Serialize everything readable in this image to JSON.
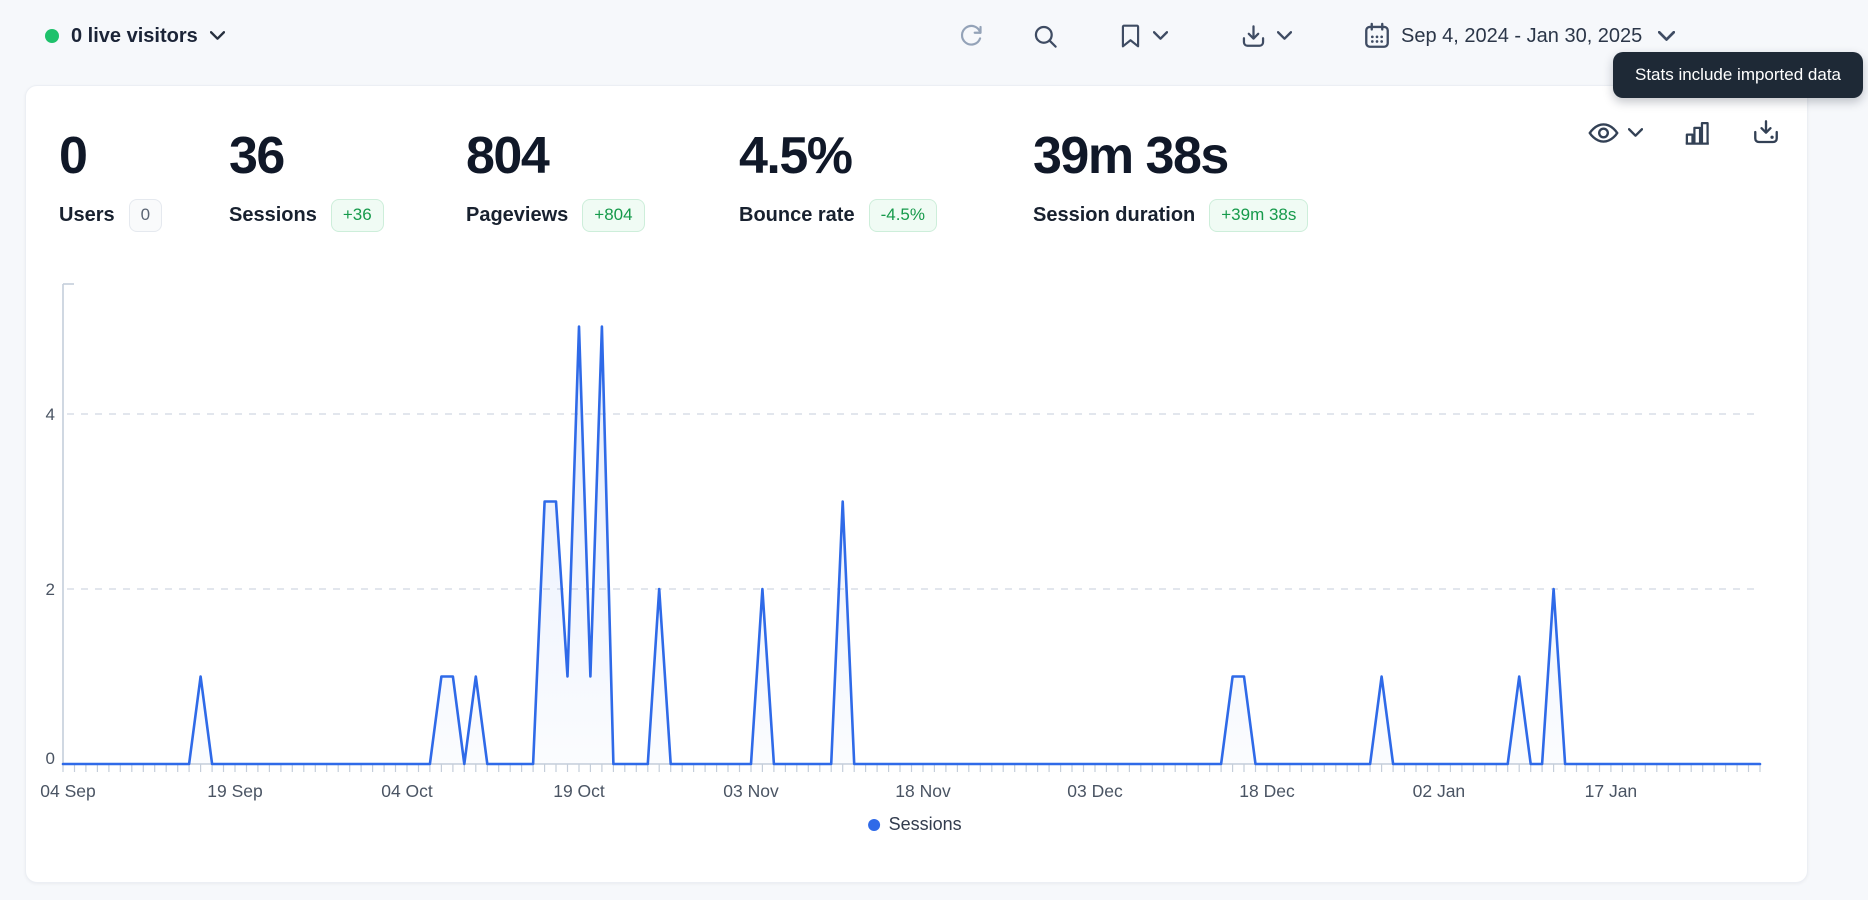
{
  "topbar": {
    "live_visitors": "0 live visitors",
    "date_range": "Sep 4, 2024 - Jan 30, 2025",
    "icons": [
      "refresh-icon",
      "search-icon",
      "bookmark-icon",
      "export-icon",
      "calendar-icon"
    ]
  },
  "tooltip": {
    "text": "Stats include imported data"
  },
  "metrics": [
    {
      "value": "0",
      "label": "Users",
      "badge": "0",
      "badge_type": "neutral"
    },
    {
      "value": "36",
      "label": "Sessions",
      "badge": "+36",
      "badge_type": "positive"
    },
    {
      "value": "804",
      "label": "Pageviews",
      "badge": "+804",
      "badge_type": "positive"
    },
    {
      "value": "4.5%",
      "label": "Bounce rate",
      "badge": "-4.5%",
      "badge_type": "positive"
    },
    {
      "value": "39m 38s",
      "label": "Session duration",
      "badge": "+39m 38s",
      "badge_type": "positive"
    }
  ],
  "card_actions": [
    "visibility-eye",
    "bar-chart-view",
    "import-data"
  ],
  "chart_data": {
    "type": "area",
    "series_name": "Sessions",
    "title": "",
    "xlabel": "",
    "ylabel": "",
    "x_start_date": "Sep 4, 2024",
    "x_end_date": "Jan 30, 2025",
    "days_total": 148,
    "x_tick_labels": [
      "04 Sep",
      "19 Sep",
      "04 Oct",
      "19 Oct",
      "03 Nov",
      "18 Nov",
      "03 Dec",
      "18 Dec",
      "02 Jan",
      "17 Jan"
    ],
    "x_tick_days": [
      0,
      15,
      30,
      45,
      60,
      75,
      90,
      105,
      120,
      135
    ],
    "y_ticks": [
      0,
      2,
      4
    ],
    "ylim": [
      0,
      5.5
    ],
    "grid": "dashed-horizontal",
    "legend_position": "bottom-center",
    "line_color": "#2f6ae8",
    "points": [
      {
        "day": 12,
        "date": "Sep 16",
        "value": 1
      },
      {
        "day": 33,
        "date": "Oct 7",
        "value": 1
      },
      {
        "day": 34,
        "date": "Oct 8",
        "value": 1
      },
      {
        "day": 36,
        "date": "Oct 10",
        "value": 1
      },
      {
        "day": 42,
        "date": "Oct 16",
        "value": 3
      },
      {
        "day": 43,
        "date": "Oct 17",
        "value": 3
      },
      {
        "day": 44,
        "date": "Oct 18",
        "value": 1
      },
      {
        "day": 45,
        "date": "Oct 19",
        "value": 5
      },
      {
        "day": 46,
        "date": "Oct 20",
        "value": 1
      },
      {
        "day": 47,
        "date": "Oct 21",
        "value": 5
      },
      {
        "day": 52,
        "date": "Oct 26",
        "value": 2
      },
      {
        "day": 61,
        "date": "Nov 4",
        "value": 2
      },
      {
        "day": 68,
        "date": "Nov 11",
        "value": 3
      },
      {
        "day": 102,
        "date": "Dec 15",
        "value": 1
      },
      {
        "day": 103,
        "date": "Dec 16",
        "value": 1
      },
      {
        "day": 115,
        "date": "Dec 28",
        "value": 1
      },
      {
        "day": 127,
        "date": "Jan 9",
        "value": 1
      },
      {
        "day": 130,
        "date": "Jan 12",
        "value": 2
      }
    ]
  },
  "colors": {
    "page_bg": "#f6f8fb",
    "card_bg": "#ffffff",
    "accent_blue": "#2f6ae8",
    "live_green": "#1ec16b",
    "badge_green_text": "#169a4b",
    "tooltip_bg": "#1e2936",
    "grid_line": "#d9dee7",
    "axis_line": "#c5ceda",
    "tick_label": "#4a5463"
  }
}
